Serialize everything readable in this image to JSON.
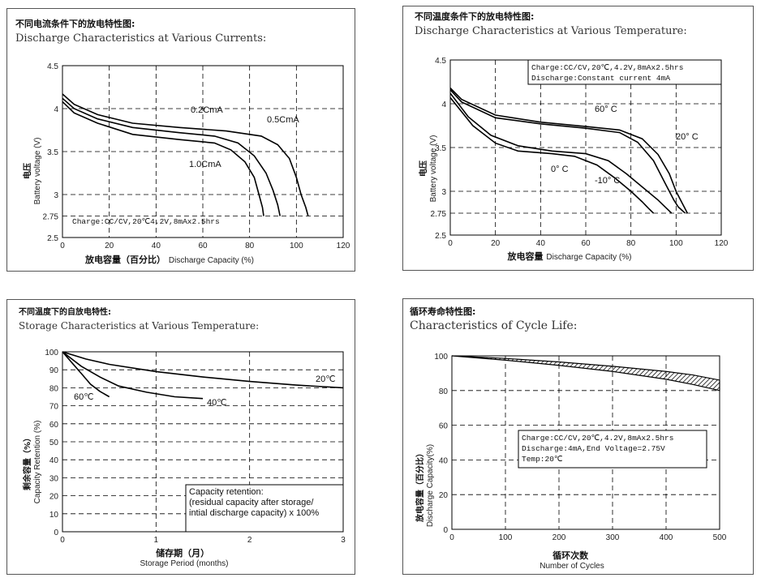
{
  "chart_data": [
    {
      "type": "line",
      "title_cn": "不同电流条件下的放电特性图:",
      "title": "Discharge Characteristics at Various Currents:",
      "xlabel_cn": "放电容量（百分比）",
      "xlabel": "Discharge Capacity (%)",
      "ylabel_cn": "电压",
      "ylabel": "Battery voltage (V)",
      "xlim": [
        0,
        120
      ],
      "ylim": [
        2.5,
        4.5
      ],
      "x_ticks": [
        0,
        20,
        40,
        60,
        80,
        100,
        120
      ],
      "y_ticks": [
        2.5,
        2.75,
        3.0,
        3.5,
        4.0,
        4.5
      ],
      "note": "Charge:CC/CV,20℃4.2V,8mAx2.5hrs",
      "series": [
        {
          "name": "0.2CmA",
          "points": [
            [
              0,
              4.17
            ],
            [
              5,
              4.05
            ],
            [
              15,
              3.93
            ],
            [
              30,
              3.83
            ],
            [
              50,
              3.78
            ],
            [
              70,
              3.74
            ],
            [
              85,
              3.68
            ],
            [
              92,
              3.58
            ],
            [
              97,
              3.42
            ],
            [
              100,
              3.2
            ],
            [
              102,
              3.0
            ],
            [
              104,
              2.85
            ],
            [
              105,
              2.75
            ]
          ]
        },
        {
          "name": "0.5CmA",
          "points": [
            [
              0,
              4.12
            ],
            [
              5,
              4.0
            ],
            [
              15,
              3.88
            ],
            [
              30,
              3.78
            ],
            [
              50,
              3.72
            ],
            [
              65,
              3.68
            ],
            [
              75,
              3.6
            ],
            [
              82,
              3.45
            ],
            [
              87,
              3.25
            ],
            [
              90,
              3.05
            ],
            [
              92,
              2.88
            ],
            [
              93,
              2.75
            ]
          ]
        },
        {
          "name": "1.0CmA",
          "points": [
            [
              0,
              4.08
            ],
            [
              5,
              3.95
            ],
            [
              15,
              3.83
            ],
            [
              30,
              3.7
            ],
            [
              50,
              3.64
            ],
            [
              65,
              3.6
            ],
            [
              72,
              3.52
            ],
            [
              78,
              3.38
            ],
            [
              82,
              3.2
            ],
            [
              84,
              3.0
            ],
            [
              85.5,
              2.85
            ],
            [
              86,
              2.75
            ]
          ]
        }
      ]
    },
    {
      "type": "line",
      "title_cn": "不同温度条件下的放电特性图:",
      "title": "Discharge Characteristics at Various Temperature:",
      "xlabel_cn": "放电容量",
      "xlabel": "Discharge Capacity (%)",
      "ylabel_cn": "电压",
      "ylabel": "Battery voltage (V)",
      "xlim": [
        0,
        120
      ],
      "ylim": [
        2.5,
        4.5
      ],
      "x_ticks": [
        0,
        20,
        40,
        60,
        80,
        100,
        120
      ],
      "y_ticks": [
        2.5,
        2.75,
        3.0,
        3.5,
        4.0,
        4.5
      ],
      "note_lines": [
        "Charge:CC/CV,20℃,4.2V,8mAx2.5hrs",
        "Discharge:Constant current 4mA"
      ],
      "series": [
        {
          "name": "60° C",
          "points": [
            [
              0,
              4.18
            ],
            [
              5,
              4.05
            ],
            [
              20,
              3.87
            ],
            [
              40,
              3.79
            ],
            [
              60,
              3.74
            ],
            [
              75,
              3.7
            ],
            [
              85,
              3.6
            ],
            [
              92,
              3.42
            ],
            [
              97,
              3.2
            ],
            [
              100,
              3.0
            ],
            [
              103,
              2.85
            ],
            [
              105,
              2.75
            ]
          ]
        },
        {
          "name": "20° C",
          "points": [
            [
              0,
              4.16
            ],
            [
              5,
              4.02
            ],
            [
              20,
              3.84
            ],
            [
              40,
              3.77
            ],
            [
              60,
              3.72
            ],
            [
              75,
              3.67
            ],
            [
              83,
              3.56
            ],
            [
              90,
              3.35
            ],
            [
              95,
              3.1
            ],
            [
              99,
              2.9
            ],
            [
              101,
              2.82
            ],
            [
              104,
              2.75
            ]
          ]
        },
        {
          "name": "0° C",
          "points": [
            [
              0,
              4.12
            ],
            [
              8,
              3.85
            ],
            [
              18,
              3.64
            ],
            [
              30,
              3.52
            ],
            [
              45,
              3.46
            ],
            [
              60,
              3.43
            ],
            [
              70,
              3.35
            ],
            [
              78,
              3.2
            ],
            [
              85,
              3.05
            ],
            [
              92,
              2.9
            ],
            [
              96,
              2.8
            ],
            [
              98,
              2.75
            ]
          ]
        },
        {
          "name": "-10° C",
          "points": [
            [
              0,
              4.07
            ],
            [
              10,
              3.75
            ],
            [
              20,
              3.55
            ],
            [
              30,
              3.46
            ],
            [
              45,
              3.43
            ],
            [
              55,
              3.4
            ],
            [
              65,
              3.3
            ],
            [
              73,
              3.15
            ],
            [
              80,
              3.0
            ],
            [
              85,
              2.88
            ],
            [
              88,
              2.8
            ],
            [
              90,
              2.75
            ]
          ]
        }
      ]
    },
    {
      "type": "line",
      "title_cn": "不同温度下的自放电特性:",
      "title": "Storage Characteristics at Various Temperature:",
      "xlabel_cn": "储存期（月）",
      "xlabel": "Storage Period (months)",
      "ylabel_cn": "剩余容量（%）",
      "ylabel": "Capacity Retention (%)",
      "xlim": [
        0,
        3
      ],
      "ylim": [
        0,
        100
      ],
      "x_ticks": [
        0,
        1,
        2,
        3
      ],
      "y_ticks": [
        0,
        10,
        20,
        30,
        40,
        50,
        60,
        70,
        80,
        90,
        100
      ],
      "note_lines": [
        "Capacity retention:",
        "(residual capacity after storage/",
        "intial discharge capacity) x 100%"
      ],
      "series": [
        {
          "name": "20℃",
          "points": [
            [
              0,
              100
            ],
            [
              0.25,
              96
            ],
            [
              0.5,
              93
            ],
            [
              1,
              89
            ],
            [
              1.5,
              86
            ],
            [
              2,
              83.5
            ],
            [
              2.5,
              81.5
            ],
            [
              3,
              80
            ]
          ]
        },
        {
          "name": "40℃",
          "points": [
            [
              0,
              100
            ],
            [
              0.2,
              92
            ],
            [
              0.4,
              86
            ],
            [
              0.6,
              81
            ],
            [
              0.9,
              77.5
            ],
            [
              1.2,
              75
            ],
            [
              1.5,
              74
            ]
          ]
        },
        {
          "name": "60℃",
          "points": [
            [
              0,
              100
            ],
            [
              0.1,
              94
            ],
            [
              0.2,
              88
            ],
            [
              0.3,
              82
            ],
            [
              0.4,
              78
            ],
            [
              0.5,
              75
            ]
          ]
        }
      ]
    },
    {
      "type": "area",
      "title_cn": "循环寿命特性图:",
      "title": "Characteristics of Cycle Life:",
      "xlabel_cn": "循环次数",
      "xlabel": "Number of Cycles",
      "ylabel_cn": "放电容量（百分比）",
      "ylabel": "Discharge Capacity(%)",
      "xlim": [
        0,
        500
      ],
      "ylim": [
        0,
        100
      ],
      "x_ticks": [
        0,
        100,
        200,
        300,
        400,
        500
      ],
      "y_ticks": [
        0,
        20,
        40,
        60,
        80,
        100
      ],
      "note_lines": [
        "Charge:CC/CV,20℃,4.2V,8mAx2.5hrs",
        "Discharge:4mA,End Voltage=2.75V",
        "Temp:20℃"
      ],
      "series": [
        {
          "name": "upper",
          "points": [
            [
              0,
              100
            ],
            [
              100,
              98.5
            ],
            [
              200,
              96.5
            ],
            [
              300,
              94
            ],
            [
              400,
              91
            ],
            [
              450,
              89
            ],
            [
              500,
              86
            ]
          ]
        },
        {
          "name": "lower",
          "points": [
            [
              0,
              100
            ],
            [
              100,
              97.5
            ],
            [
              200,
              94.5
            ],
            [
              300,
              91
            ],
            [
              400,
              86.5
            ],
            [
              450,
              83.5
            ],
            [
              500,
              80
            ]
          ]
        }
      ]
    }
  ]
}
